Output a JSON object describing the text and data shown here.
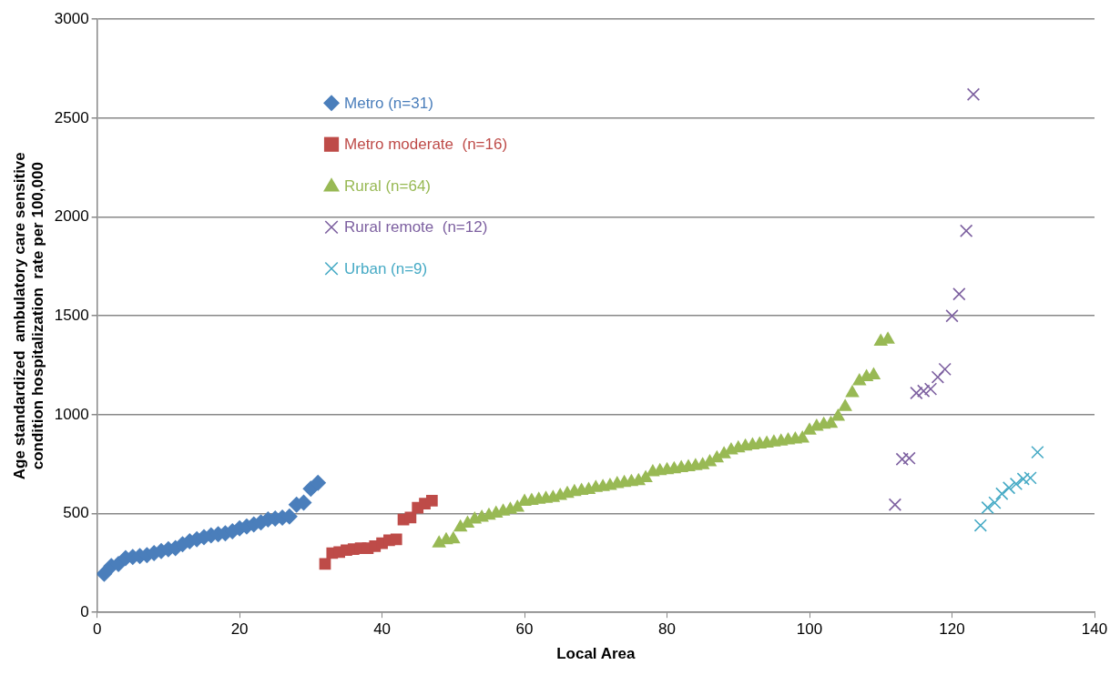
{
  "chart_data": {
    "type": "scatter",
    "xlabel": "Local Area",
    "ylabel": "Age standardized  ambulatory care sensitive condition hospitalization  rate per 100,000",
    "xlim": [
      0,
      140
    ],
    "xticks": [
      0,
      20,
      40,
      60,
      80,
      100,
      120,
      140
    ],
    "ylim": [
      0,
      3000
    ],
    "yticks": [
      0,
      500,
      1000,
      1500,
      2000,
      2500,
      3000
    ],
    "grid": "y",
    "legend": "top left",
    "series": [
      {
        "name": "Metro (n=31)",
        "color": "#4a7ebb",
        "marker": "diamond",
        "x": [
          1,
          2,
          3,
          4,
          5,
          6,
          7,
          8,
          9,
          10,
          11,
          12,
          13,
          14,
          15,
          16,
          17,
          18,
          19,
          20,
          21,
          22,
          23,
          24,
          25,
          26,
          27,
          28,
          29,
          30,
          31
        ],
        "values": [
          195,
          235,
          245,
          275,
          280,
          285,
          290,
          300,
          310,
          320,
          325,
          345,
          360,
          370,
          380,
          390,
          395,
          400,
          410,
          425,
          435,
          445,
          455,
          470,
          475,
          480,
          485,
          545,
          555,
          625,
          655
        ]
      },
      {
        "name": "Metro moderate  (n=16)",
        "color": "#be4b48",
        "marker": "square",
        "x": [
          32,
          33,
          34,
          35,
          36,
          37,
          38,
          39,
          40,
          41,
          42,
          43,
          44,
          45,
          46,
          47
        ],
        "values": [
          245,
          300,
          305,
          315,
          320,
          325,
          325,
          335,
          350,
          365,
          370,
          470,
          480,
          530,
          550,
          565
        ]
      },
      {
        "name": "Rural (n=64)",
        "color": "#98b954",
        "marker": "triangle",
        "x": [
          48,
          49,
          50,
          51,
          52,
          53,
          54,
          55,
          56,
          57,
          58,
          59,
          60,
          61,
          62,
          63,
          64,
          65,
          66,
          67,
          68,
          69,
          70,
          71,
          72,
          73,
          74,
          75,
          76,
          77,
          78,
          79,
          80,
          81,
          82,
          83,
          84,
          85,
          86,
          87,
          88,
          89,
          90,
          91,
          92,
          93,
          94,
          95,
          96,
          97,
          98,
          99,
          100,
          101,
          102,
          103,
          104,
          105,
          106,
          107,
          108,
          109,
          110,
          111
        ],
        "values": [
          350,
          365,
          370,
          430,
          450,
          470,
          480,
          490,
          500,
          510,
          520,
          530,
          560,
          565,
          570,
          575,
          580,
          590,
          600,
          610,
          615,
          620,
          630,
          635,
          640,
          650,
          655,
          660,
          665,
          680,
          710,
          715,
          720,
          725,
          730,
          735,
          740,
          745,
          760,
          780,
          800,
          820,
          830,
          840,
          845,
          850,
          855,
          860,
          865,
          870,
          875,
          880,
          920,
          940,
          950,
          955,
          990,
          1040,
          1110,
          1170,
          1190,
          1200,
          1370,
          1380
        ]
      },
      {
        "name": "Rural remote  (n=12)",
        "color": "#7d60a0",
        "marker": "cross",
        "x": [
          112,
          113,
          114,
          115,
          116,
          117,
          118,
          119,
          120,
          121,
          122,
          123
        ],
        "values": [
          545,
          775,
          780,
          1110,
          1120,
          1130,
          1190,
          1230,
          1500,
          1610,
          1930,
          2620
        ]
      },
      {
        "name": "Urban (n=9)",
        "color": "#46aac5",
        "marker": "cross",
        "x": [
          124,
          125,
          126,
          127,
          128,
          129,
          130,
          131,
          132
        ],
        "values": [
          440,
          530,
          555,
          600,
          630,
          650,
          675,
          680,
          810
        ]
      }
    ]
  }
}
